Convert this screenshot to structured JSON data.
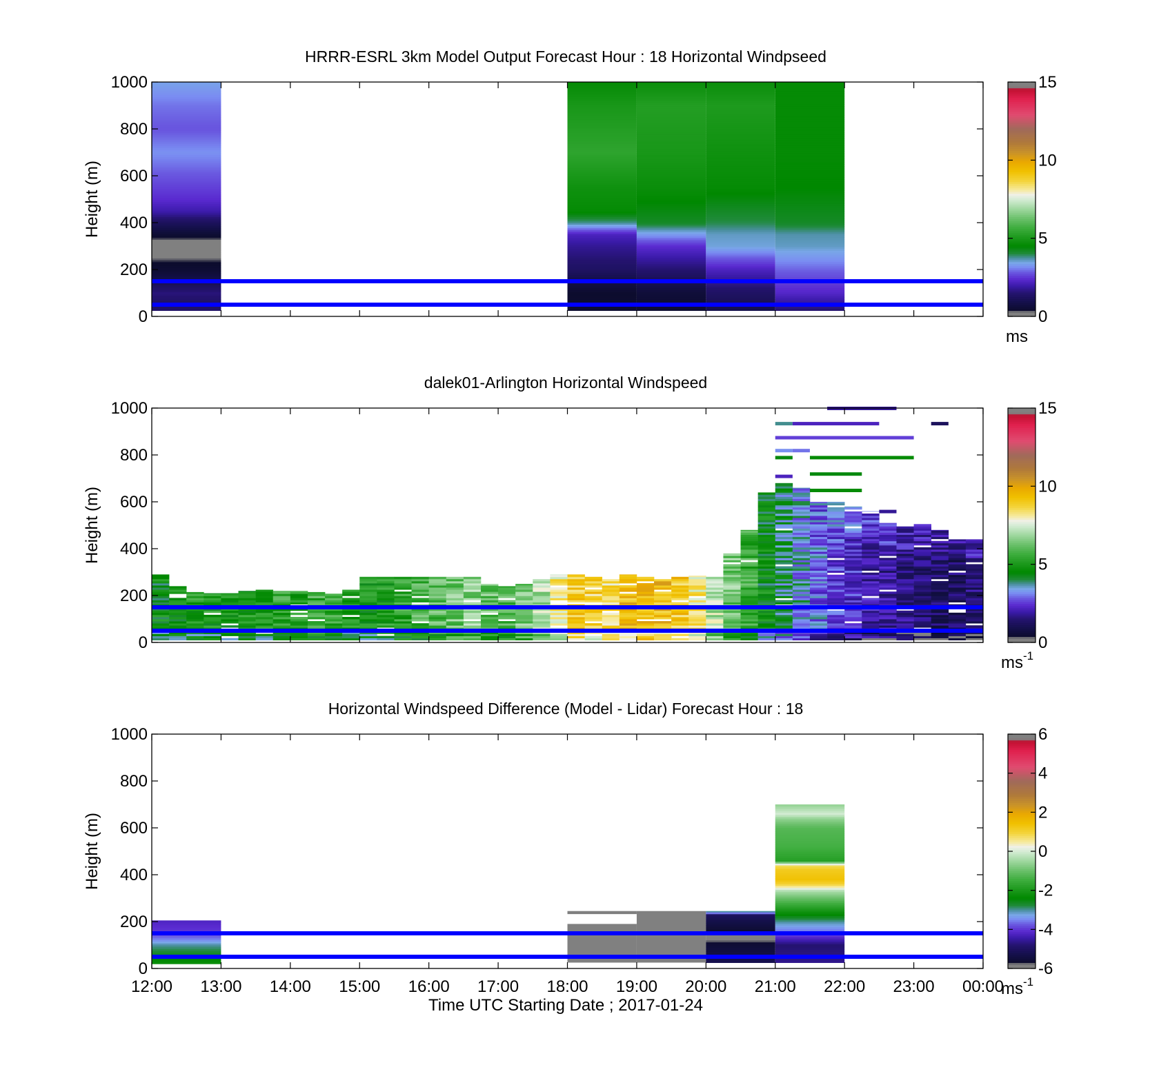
{
  "colors": {
    "windline": "#0000ff",
    "missing": "#ffffff"
  },
  "chart_data": [
    {
      "type": "heatmap",
      "title": "HRRR-ESRL 3km Model Output   Forecast Hour : 18 Horizontal Windpseed",
      "xlabel": "",
      "ylabel": "Height (m)",
      "xlim": [
        12,
        24
      ],
      "ylim": [
        0,
        1000
      ],
      "y_ticks": [
        "0",
        "200",
        "400",
        "600",
        "800",
        "1000"
      ],
      "x_ticks": [],
      "colorbar": {
        "ticks": [
          "0",
          "5",
          "10",
          "15"
        ],
        "unit": "ms",
        "unit_sup": "",
        "range": [
          0,
          15
        ]
      },
      "hlines": [
        50,
        150
      ],
      "blocks": [
        {
          "t0": 12,
          "t1": 13,
          "top": 1000,
          "bottom": 25,
          "profile": [
            [
              0,
              1.5
            ],
            [
              50,
              1.3
            ],
            [
              100,
              1.6
            ],
            [
              150,
              1.0
            ],
            [
              200,
              0.5
            ],
            [
              250,
              0.3
            ],
            [
              300,
              0.05
            ],
            [
              350,
              0.5
            ],
            [
              400,
              1.2
            ],
            [
              450,
              2.0
            ],
            [
              500,
              2.4
            ],
            [
              550,
              2.6
            ],
            [
              600,
              2.8
            ],
            [
              700,
              3.2
            ],
            [
              800,
              2.8
            ],
            [
              900,
              3.0
            ],
            [
              1000,
              3.4
            ]
          ]
        },
        {
          "t0": 18,
          "t1": 19,
          "top": 1000,
          "bottom": 25,
          "profile": [
            [
              0,
              0.5
            ],
            [
              100,
              0.4
            ],
            [
              200,
              1.3
            ],
            [
              300,
              1.8
            ],
            [
              350,
              2.2
            ],
            [
              400,
              3.8
            ],
            [
              450,
              4.6
            ],
            [
              550,
              4.8
            ],
            [
              700,
              5.4
            ],
            [
              900,
              5.0
            ],
            [
              1000,
              4.6
            ]
          ]
        },
        {
          "t0": 19,
          "t1": 20,
          "top": 1000,
          "bottom": 25,
          "profile": [
            [
              0,
              0.4
            ],
            [
              100,
              0.6
            ],
            [
              200,
              1.5
            ],
            [
              300,
              2.4
            ],
            [
              350,
              3.3
            ],
            [
              400,
              4.2
            ],
            [
              550,
              4.7
            ],
            [
              700,
              5.0
            ],
            [
              900,
              5.2
            ],
            [
              1000,
              4.7
            ]
          ]
        },
        {
          "t0": 20,
          "t1": 21,
          "top": 1000,
          "bottom": 25,
          "profile": [
            [
              0,
              0.8
            ],
            [
              100,
              1.3
            ],
            [
              200,
              2.2
            ],
            [
              300,
              3.5
            ],
            [
              350,
              3.6
            ],
            [
              400,
              4.0
            ],
            [
              550,
              4.6
            ],
            [
              700,
              4.8
            ],
            [
              900,
              5.1
            ],
            [
              1000,
              4.7
            ]
          ]
        },
        {
          "t0": 21,
          "t1": 22,
          "top": 1000,
          "bottom": 25,
          "profile": [
            [
              0,
              1.2
            ],
            [
              100,
              2.3
            ],
            [
              200,
              2.9
            ],
            [
              300,
              3.6
            ],
            [
              350,
              3.7
            ],
            [
              400,
              4.2
            ],
            [
              550,
              4.5
            ],
            [
              700,
              4.6
            ],
            [
              900,
              4.6
            ],
            [
              1000,
              4.6
            ]
          ]
        }
      ]
    },
    {
      "type": "heatmap",
      "title": "dalek01-Arlington  Horizontal Windspeed",
      "xlabel": "",
      "ylabel": "Height (m)",
      "xlim": [
        12,
        24
      ],
      "ylim": [
        0,
        1000
      ],
      "y_ticks": [
        "0",
        "200",
        "400",
        "600",
        "800",
        "1000"
      ],
      "x_ticks": [],
      "colorbar": {
        "ticks": [
          "0",
          "5",
          "10",
          "15"
        ],
        "unit": "ms",
        "unit_sup": "-1",
        "range": [
          0,
          15
        ]
      },
      "hlines": [
        50,
        150
      ],
      "column_width_hours": 0.25,
      "columns": [
        [
          12.0,
          290,
          4.6
        ],
        [
          12.25,
          240,
          4.9
        ],
        [
          12.5,
          215,
          5.2
        ],
        [
          12.75,
          210,
          5.0
        ],
        [
          13.0,
          210,
          4.8
        ],
        [
          13.25,
          220,
          5.1
        ],
        [
          13.5,
          225,
          5.3
        ],
        [
          13.75,
          220,
          5.4
        ],
        [
          14.0,
          220,
          5.3
        ],
        [
          14.25,
          215,
          5.6
        ],
        [
          14.5,
          210,
          5.5
        ],
        [
          14.75,
          225,
          5.2
        ],
        [
          15.0,
          280,
          5.0
        ],
        [
          15.25,
          280,
          5.1
        ],
        [
          15.5,
          280,
          5.4
        ],
        [
          15.75,
          280,
          5.8
        ],
        [
          16.0,
          280,
          6.0
        ],
        [
          16.25,
          280,
          6.3
        ],
        [
          16.5,
          280,
          6.6
        ],
        [
          16.75,
          250,
          6.2
        ],
        [
          17.0,
          240,
          6.0
        ],
        [
          17.25,
          250,
          6.5
        ],
        [
          17.5,
          270,
          7.0
        ],
        [
          17.75,
          290,
          8.2
        ],
        [
          18.0,
          290,
          9.0
        ],
        [
          18.25,
          280,
          8.8
        ],
        [
          18.5,
          270,
          8.6
        ],
        [
          18.75,
          290,
          9.4
        ],
        [
          19.0,
          280,
          9.5
        ],
        [
          19.25,
          270,
          9.4
        ],
        [
          19.5,
          280,
          9.0
        ],
        [
          19.75,
          285,
          8.2
        ],
        [
          20.0,
          280,
          7.2
        ],
        [
          20.25,
          380,
          6.4
        ],
        [
          20.5,
          480,
          5.6
        ],
        [
          20.75,
          640,
          4.6
        ],
        [
          21.0,
          680,
          4.0
        ],
        [
          21.25,
          660,
          3.4
        ],
        [
          21.5,
          600,
          3.0
        ],
        [
          21.75,
          600,
          2.6
        ],
        [
          22.0,
          580,
          2.4
        ],
        [
          22.25,
          560,
          2.0
        ],
        [
          22.5,
          510,
          1.8
        ],
        [
          22.75,
          495,
          1.6
        ],
        [
          23.0,
          505,
          1.5
        ],
        [
          23.25,
          480,
          1.3
        ],
        [
          23.5,
          440,
          1.3
        ],
        [
          23.75,
          440,
          1.5
        ]
      ],
      "aloft_streaks": [
        [
          21.75,
          22.75,
          1000,
          1.8
        ],
        [
          21.0,
          21.25,
          935,
          3.8
        ],
        [
          21.25,
          22.5,
          935,
          2.2
        ],
        [
          23.25,
          23.5,
          935,
          1.2
        ],
        [
          21.0,
          23.0,
          875,
          2.6
        ],
        [
          21.0,
          21.25,
          820,
          3.2
        ],
        [
          21.25,
          21.5,
          820,
          3.0
        ],
        [
          21.0,
          21.25,
          790,
          4.4
        ],
        [
          21.5,
          23.0,
          790,
          4.6
        ],
        [
          21.5,
          22.25,
          720,
          4.4
        ],
        [
          21.5,
          22.25,
          650,
          4.6
        ],
        [
          22.5,
          22.75,
          560,
          1.8
        ],
        [
          21.0,
          21.25,
          710,
          2.2
        ]
      ]
    },
    {
      "type": "heatmap",
      "title": "Horizontal Windspeed Difference (Model - Lidar) Forecast Hour : 18",
      "xlabel": "Time UTC  Starting Date ; 2017-01-24",
      "ylabel": "Height (m)",
      "xlim": [
        12,
        24
      ],
      "ylim": [
        0,
        1000
      ],
      "y_ticks": [
        "0",
        "200",
        "400",
        "600",
        "800",
        "1000"
      ],
      "x_ticks": [
        "12:00",
        "13:00",
        "14:00",
        "15:00",
        "16:00",
        "17:00",
        "18:00",
        "19:00",
        "20:00",
        "21:00",
        "22:00",
        "23:00",
        "00:00"
      ],
      "colorbar": {
        "ticks": [
          "-6",
          "-4",
          "-2",
          "0",
          "2",
          "4",
          "6"
        ],
        "unit": "ms",
        "unit_sup": "-1",
        "range": [
          -6,
          6
        ]
      },
      "hlines": [
        50,
        150
      ],
      "blocks": [
        {
          "t0": 12,
          "t1": 13,
          "top": 205,
          "bottom": 20,
          "profile": [
            [
              20,
              -2.2
            ],
            [
              60,
              -2.6
            ],
            [
              100,
              -3.0
            ],
            [
              130,
              -3.6
            ],
            [
              160,
              -4.0
            ],
            [
              205,
              -4.2
            ]
          ]
        },
        {
          "t0": 18,
          "t1": 19,
          "top": 190,
          "bottom": 25,
          "solid": "#808080",
          "profile": []
        },
        {
          "t0": 18,
          "t1": 19,
          "top": 245,
          "bottom": 232,
          "solid": "#808080",
          "profile": []
        },
        {
          "t0": 19,
          "t1": 20,
          "top": 245,
          "bottom": 25,
          "solid": "#808080",
          "profile": []
        },
        {
          "t0": 20,
          "t1": 21,
          "top": 245,
          "bottom": 25,
          "profile": [
            [
              25,
              -5.2
            ],
            [
              110,
              -5.6
            ],
            [
              125,
              -5.9
            ],
            [
              200,
              -5.3
            ],
            [
              230,
              -5.0
            ],
            [
              240,
              -3.0
            ]
          ]
        },
        {
          "t0": 21,
          "t1": 22,
          "top": 700,
          "bottom": 25,
          "profile": [
            [
              25,
              -4.6
            ],
            [
              100,
              -4.8
            ],
            [
              160,
              -3.6
            ],
            [
              200,
              -3.0
            ],
            [
              260,
              -1.8
            ],
            [
              330,
              -0.4
            ],
            [
              360,
              1.0
            ],
            [
              380,
              1.4
            ],
            [
              420,
              1.2
            ],
            [
              440,
              0.8
            ],
            [
              460,
              -1.8
            ],
            [
              520,
              -1.4
            ],
            [
              600,
              -1.2
            ],
            [
              640,
              -0.6
            ],
            [
              660,
              0.0
            ],
            [
              700,
              -0.6
            ]
          ]
        }
      ]
    }
  ]
}
